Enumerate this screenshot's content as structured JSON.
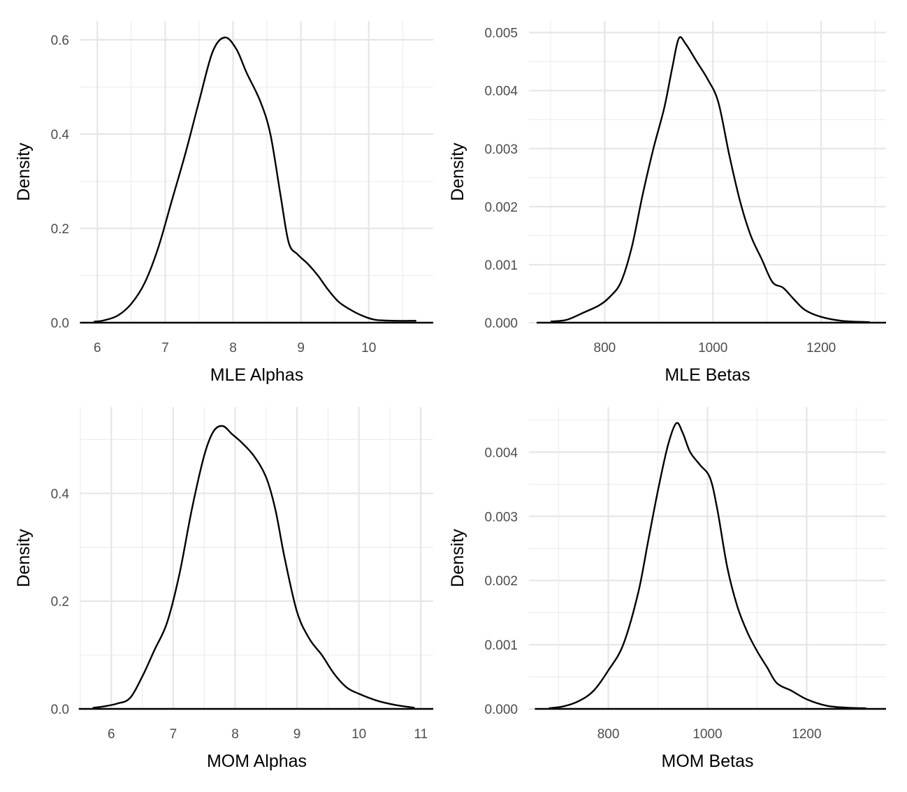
{
  "chart_data": [
    {
      "type": "line",
      "kind": "density",
      "title": "",
      "xlabel": "MLE Alphas",
      "ylabel": "Density",
      "xlim": [
        5.75,
        10.95
      ],
      "ylim": [
        0.0,
        0.64
      ],
      "x_ticks": [
        6,
        7,
        8,
        9,
        10
      ],
      "y_ticks": [
        0.0,
        0.2,
        0.4,
        0.6
      ],
      "y_tick_labels": [
        "0.0",
        "0.2",
        "0.4",
        "0.6"
      ],
      "grid": true,
      "series": [
        {
          "name": "MLE Alphas density",
          "x": [
            5.95,
            6.1,
            6.3,
            6.5,
            6.7,
            6.9,
            7.1,
            7.3,
            7.5,
            7.7,
            7.88,
            8.05,
            8.2,
            8.4,
            8.55,
            8.7,
            8.82,
            8.95,
            9.1,
            9.25,
            9.4,
            9.55,
            9.7,
            9.9,
            10.1,
            10.4,
            10.7
          ],
          "y": [
            0.002,
            0.005,
            0.015,
            0.04,
            0.085,
            0.16,
            0.26,
            0.36,
            0.47,
            0.575,
            0.605,
            0.58,
            0.53,
            0.47,
            0.4,
            0.27,
            0.17,
            0.145,
            0.125,
            0.1,
            0.07,
            0.045,
            0.03,
            0.015,
            0.006,
            0.004,
            0.004
          ]
        }
      ]
    },
    {
      "type": "line",
      "kind": "density",
      "title": "",
      "xlabel": "MLE Betas",
      "ylabel": "Density",
      "xlim": [
        660,
        1320
      ],
      "ylim": [
        0.0,
        0.0052
      ],
      "x_ticks": [
        800,
        1000,
        1200
      ],
      "y_ticks": [
        0.0,
        0.001,
        0.002,
        0.003,
        0.004,
        0.005
      ],
      "y_tick_labels": [
        "0.000",
        "0.001",
        "0.002",
        "0.003",
        "0.004",
        "0.005"
      ],
      "grid": true,
      "series": [
        {
          "name": "MLE Betas density",
          "x": [
            700,
            730,
            760,
            790,
            810,
            830,
            850,
            870,
            890,
            910,
            925,
            937,
            950,
            970,
            990,
            1010,
            1030,
            1050,
            1070,
            1090,
            1110,
            1130,
            1150,
            1170,
            1200,
            1240,
            1290
          ],
          "y": [
            2e-05,
            5e-05,
            0.00017,
            0.0003,
            0.00045,
            0.0007,
            0.0013,
            0.0022,
            0.003,
            0.0037,
            0.0044,
            0.0049,
            0.0048,
            0.0045,
            0.0042,
            0.0038,
            0.0029,
            0.0021,
            0.0015,
            0.0011,
            0.0007,
            0.0006,
            0.0004,
            0.00022,
            0.0001,
            3e-05,
            1e-05
          ]
        }
      ]
    },
    {
      "type": "line",
      "kind": "density",
      "title": "",
      "xlabel": "MOM Alphas",
      "ylabel": "Density",
      "xlim": [
        5.5,
        11.2
      ],
      "ylim": [
        0.0,
        0.56
      ],
      "x_ticks": [
        6,
        7,
        8,
        9,
        10,
        11
      ],
      "y_ticks": [
        0.0,
        0.2,
        0.4
      ],
      "y_tick_labels": [
        "0.0",
        "0.2",
        "0.4"
      ],
      "grid": true,
      "series": [
        {
          "name": "MOM Alphas density",
          "x": [
            5.7,
            5.9,
            6.1,
            6.3,
            6.5,
            6.7,
            6.9,
            7.1,
            7.3,
            7.5,
            7.65,
            7.8,
            7.95,
            8.1,
            8.3,
            8.5,
            8.65,
            8.8,
            9.0,
            9.2,
            9.4,
            9.6,
            9.8,
            10.0,
            10.3,
            10.6,
            10.9
          ],
          "y": [
            0.002,
            0.005,
            0.01,
            0.02,
            0.06,
            0.11,
            0.16,
            0.25,
            0.37,
            0.47,
            0.515,
            0.525,
            0.51,
            0.495,
            0.47,
            0.43,
            0.37,
            0.28,
            0.18,
            0.13,
            0.1,
            0.065,
            0.04,
            0.028,
            0.015,
            0.007,
            0.002
          ]
        }
      ]
    },
    {
      "type": "line",
      "kind": "density",
      "title": "",
      "xlabel": "MOM Betas",
      "ylabel": "Density",
      "xlim": [
        640,
        1360
      ],
      "ylim": [
        0.0,
        0.0047
      ],
      "x_ticks": [
        800,
        1000,
        1200
      ],
      "y_ticks": [
        0.0,
        0.001,
        0.002,
        0.003,
        0.004
      ],
      "y_tick_labels": [
        "0.000",
        "0.001",
        "0.002",
        "0.003",
        "0.004"
      ],
      "grid": true,
      "series": [
        {
          "name": "MOM Betas density",
          "x": [
            680,
            710,
            740,
            770,
            800,
            830,
            860,
            880,
            900,
            920,
            937,
            950,
            965,
            985,
            1005,
            1020,
            1040,
            1060,
            1080,
            1100,
            1120,
            1140,
            1170,
            1200,
            1240,
            1280,
            1320
          ],
          "y": [
            1e-05,
            4e-05,
            0.00012,
            0.00028,
            0.0006,
            0.001,
            0.0018,
            0.0026,
            0.0034,
            0.0041,
            0.00445,
            0.0043,
            0.004,
            0.0038,
            0.0036,
            0.0031,
            0.0022,
            0.0016,
            0.0012,
            0.0009,
            0.00065,
            0.0004,
            0.00028,
            0.00015,
            5e-05,
            2e-05,
            1e-05
          ]
        }
      ]
    }
  ]
}
